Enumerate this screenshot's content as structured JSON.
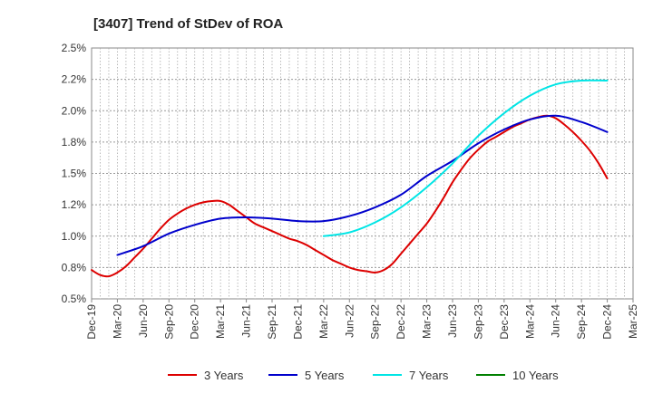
{
  "chart_data": {
    "type": "line",
    "title": "[3407]  Trend of StDev of ROA",
    "xlabel": "",
    "ylabel": "",
    "ylim": [
      0.5,
      2.5
    ],
    "y_ticks": [
      0.5,
      0.75,
      1.0,
      1.25,
      1.5,
      1.75,
      2.0,
      2.25,
      2.5
    ],
    "y_tick_labels": [
      "0.5%",
      "0.8%",
      "1.0%",
      "1.2%",
      "1.5%",
      "1.8%",
      "2.0%",
      "2.2%",
      "2.5%"
    ],
    "categories": [
      "Dec-19",
      "Mar-20",
      "Jun-20",
      "Sep-20",
      "Dec-20",
      "Mar-21",
      "Jun-21",
      "Sep-21",
      "Dec-21",
      "Mar-22",
      "Jun-22",
      "Sep-22",
      "Dec-22",
      "Mar-23",
      "Jun-23",
      "Sep-23",
      "Dec-23",
      "Mar-24",
      "Jun-24",
      "Sep-24",
      "Dec-24",
      "Mar-25"
    ],
    "x_month_span": 63,
    "grid": true,
    "legend_position": "bottom",
    "series": [
      {
        "name": "3 Years",
        "color": "#dd0000",
        "x": [
          0,
          1,
          2,
          3,
          4,
          5,
          6,
          7,
          8,
          9,
          10,
          11,
          12,
          13,
          14,
          15,
          16,
          17,
          18,
          19,
          20,
          21,
          22,
          23,
          24,
          25,
          26,
          27,
          28,
          29,
          30,
          31,
          32,
          33,
          34,
          35,
          36,
          37,
          38,
          39,
          40,
          41,
          42,
          43,
          44,
          45,
          46,
          47,
          48,
          49,
          50,
          51,
          52,
          53,
          54,
          55,
          56,
          57,
          58,
          59,
          60
        ],
        "values": [
          0.73,
          0.69,
          0.68,
          0.71,
          0.76,
          0.83,
          0.9,
          0.98,
          1.06,
          1.13,
          1.18,
          1.22,
          1.25,
          1.27,
          1.28,
          1.28,
          1.25,
          1.2,
          1.15,
          1.1,
          1.07,
          1.04,
          1.01,
          0.98,
          0.96,
          0.93,
          0.89,
          0.85,
          0.81,
          0.78,
          0.75,
          0.73,
          0.72,
          0.71,
          0.73,
          0.78,
          0.86,
          0.94,
          1.02,
          1.1,
          1.2,
          1.31,
          1.43,
          1.53,
          1.62,
          1.69,
          1.75,
          1.79,
          1.83,
          1.87,
          1.9,
          1.93,
          1.95,
          1.96,
          1.94,
          1.89,
          1.83,
          1.76,
          1.68,
          1.58,
          1.46
        ]
      },
      {
        "name": "5 Years",
        "color": "#0000cc",
        "x": [
          3,
          6,
          9,
          12,
          15,
          18,
          21,
          24,
          27,
          30,
          33,
          36,
          39,
          42,
          45,
          48,
          51,
          54,
          57,
          60
        ],
        "values": [
          0.85,
          0.92,
          1.02,
          1.09,
          1.14,
          1.15,
          1.14,
          1.12,
          1.12,
          1.16,
          1.23,
          1.33,
          1.48,
          1.6,
          1.74,
          1.85,
          1.93,
          1.96,
          1.91,
          1.83
        ]
      },
      {
        "name": "7 Years",
        "color": "#00e5e5",
        "x": [
          27,
          30,
          33,
          36,
          39,
          42,
          45,
          48,
          51,
          54,
          57,
          60
        ],
        "values": [
          1.0,
          1.03,
          1.11,
          1.23,
          1.39,
          1.58,
          1.8,
          1.98,
          2.12,
          2.21,
          2.24,
          2.24
        ]
      },
      {
        "name": "10 Years",
        "color": "#008000",
        "x": [],
        "values": []
      }
    ]
  }
}
